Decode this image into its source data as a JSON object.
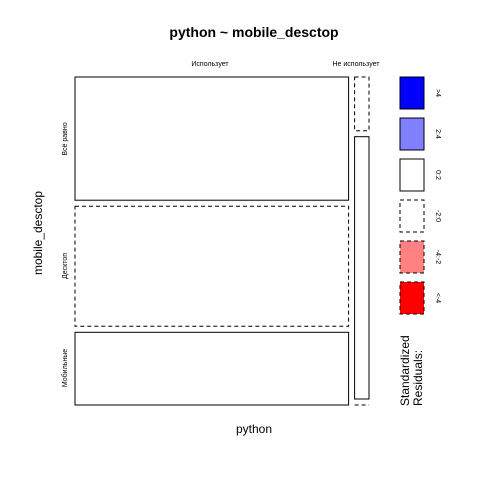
{
  "chart_data": {
    "type": "mosaic",
    "title": "python ~ mobile_desctop",
    "xlabel": "python",
    "ylabel": "mobile_desctop",
    "columns": [
      "Использует",
      "Не использует"
    ],
    "rows": [
      "Всё равно",
      "Десктоп",
      "Мобильные"
    ],
    "column_proportions": [
      0.95,
      0.05
    ],
    "cells": [
      {
        "column": "Использует",
        "row": "Всё равно",
        "proportion": 0.39,
        "residual_class": "0:2"
      },
      {
        "column": "Использует",
        "row": "Десктоп",
        "proportion": 0.38,
        "residual_class": "-2:0"
      },
      {
        "column": "Использует",
        "row": "Мобильные",
        "proportion": 0.23,
        "residual_class": "0:2"
      },
      {
        "column": "Не использует",
        "row": "Всё равно",
        "proportion": 0.17,
        "residual_class": "-2:0"
      },
      {
        "column": "Не использует",
        "row": "Десктоп",
        "proportion": 0.83,
        "residual_class": "0:2"
      },
      {
        "column": "Не использует",
        "row": "Мобильные",
        "proportion": 0.0,
        "residual_class": "-2:0"
      }
    ],
    "legend": {
      "title_line1": "Standardized",
      "title_line2": "Residuals:",
      "items": [
        {
          "label": ">4",
          "fill": "#0000FF",
          "dashed": false
        },
        {
          "label": "2:4",
          "fill": "#8080FF",
          "dashed": false
        },
        {
          "label": "0:2",
          "fill": "#FFFFFF",
          "dashed": false
        },
        {
          "label": "-2:0",
          "fill": "#FFFFFF",
          "dashed": true
        },
        {
          "label": "-4:-2",
          "fill": "#FF8080",
          "dashed": true
        },
        {
          "label": "<-4",
          "fill": "#FF0000",
          "dashed": true
        }
      ]
    }
  }
}
